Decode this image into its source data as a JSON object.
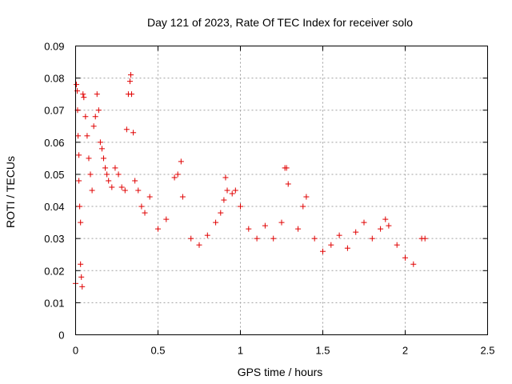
{
  "chart_data": {
    "type": "scatter",
    "title": "Day 121 of 2023, Rate Of TEC Index for receiver solo",
    "xlabel": "GPS time / hours",
    "ylabel": "ROTI / TECUs",
    "xlim": [
      0,
      2.5
    ],
    "ylim": [
      0,
      0.09
    ],
    "xticks": [
      "0",
      "0.5",
      "1",
      "1.5",
      "2",
      "2.5"
    ],
    "yticks": [
      "0",
      "0.01",
      "0.02",
      "0.03",
      "0.04",
      "0.05",
      "0.06",
      "0.07",
      "0.08",
      "0.09"
    ],
    "grid": true,
    "marker": "+",
    "color": "#e00000",
    "series": [
      {
        "points": [
          [
            0.0,
            0.016
          ],
          [
            0.005,
            0.078
          ],
          [
            0.01,
            0.076
          ],
          [
            0.012,
            0.07
          ],
          [
            0.015,
            0.062
          ],
          [
            0.02,
            0.056
          ],
          [
            0.02,
            0.048
          ],
          [
            0.025,
            0.04
          ],
          [
            0.03,
            0.035
          ],
          [
            0.03,
            0.022
          ],
          [
            0.035,
            0.018
          ],
          [
            0.04,
            0.015
          ],
          [
            0.045,
            0.075
          ],
          [
            0.05,
            0.074
          ],
          [
            0.06,
            0.068
          ],
          [
            0.07,
            0.062
          ],
          [
            0.08,
            0.055
          ],
          [
            0.09,
            0.05
          ],
          [
            0.1,
            0.045
          ],
          [
            0.11,
            0.065
          ],
          [
            0.12,
            0.068
          ],
          [
            0.13,
            0.075
          ],
          [
            0.14,
            0.07
          ],
          [
            0.15,
            0.06
          ],
          [
            0.16,
            0.058
          ],
          [
            0.17,
            0.055
          ],
          [
            0.18,
            0.052
          ],
          [
            0.19,
            0.05
          ],
          [
            0.2,
            0.048
          ],
          [
            0.22,
            0.046
          ],
          [
            0.24,
            0.052
          ],
          [
            0.26,
            0.05
          ],
          [
            0.28,
            0.046
          ],
          [
            0.3,
            0.045
          ],
          [
            0.31,
            0.064
          ],
          [
            0.32,
            0.075
          ],
          [
            0.33,
            0.079
          ],
          [
            0.335,
            0.081
          ],
          [
            0.34,
            0.075
          ],
          [
            0.35,
            0.063
          ],
          [
            0.36,
            0.048
          ],
          [
            0.38,
            0.045
          ],
          [
            0.4,
            0.04
          ],
          [
            0.42,
            0.038
          ],
          [
            0.45,
            0.043
          ],
          [
            0.5,
            0.033
          ],
          [
            0.55,
            0.036
          ],
          [
            0.6,
            0.049
          ],
          [
            0.62,
            0.05
          ],
          [
            0.64,
            0.054
          ],
          [
            0.65,
            0.043
          ],
          [
            0.7,
            0.03
          ],
          [
            0.75,
            0.028
          ],
          [
            0.8,
            0.031
          ],
          [
            0.85,
            0.035
          ],
          [
            0.88,
            0.038
          ],
          [
            0.9,
            0.042
          ],
          [
            0.91,
            0.049
          ],
          [
            0.92,
            0.045
          ],
          [
            0.95,
            0.044
          ],
          [
            0.97,
            0.045
          ],
          [
            1.0,
            0.04
          ],
          [
            1.05,
            0.033
          ],
          [
            1.1,
            0.03
          ],
          [
            1.15,
            0.034
          ],
          [
            1.2,
            0.03
          ],
          [
            1.25,
            0.035
          ],
          [
            1.27,
            0.052
          ],
          [
            1.28,
            0.052
          ],
          [
            1.29,
            0.047
          ],
          [
            1.35,
            0.033
          ],
          [
            1.38,
            0.04
          ],
          [
            1.4,
            0.043
          ],
          [
            1.45,
            0.03
          ],
          [
            1.5,
            0.026
          ],
          [
            1.55,
            0.028
          ],
          [
            1.6,
            0.031
          ],
          [
            1.65,
            0.027
          ],
          [
            1.7,
            0.032
          ],
          [
            1.75,
            0.035
          ],
          [
            1.8,
            0.03
          ],
          [
            1.85,
            0.033
          ],
          [
            1.88,
            0.036
          ],
          [
            1.9,
            0.034
          ],
          [
            1.95,
            0.028
          ],
          [
            2.0,
            0.024
          ],
          [
            2.05,
            0.022
          ],
          [
            2.1,
            0.03
          ],
          [
            2.12,
            0.03
          ]
        ]
      }
    ]
  }
}
